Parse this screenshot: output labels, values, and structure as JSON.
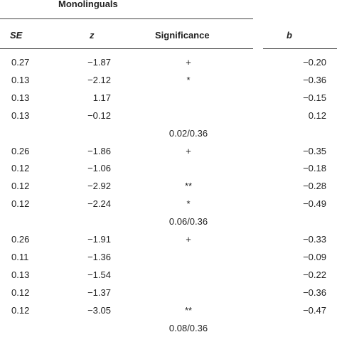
{
  "table": {
    "group_header": "Monolinguals",
    "columns": {
      "se": "SE",
      "z": "z",
      "sig": "Significance",
      "b": "b"
    },
    "rows": [
      {
        "se": "0.27",
        "z": "−1.87",
        "sig": "+",
        "b": "−0.20"
      },
      {
        "se": "0.13",
        "z": "−2.12",
        "sig": "*",
        "b": "−0.36"
      },
      {
        "se": "0.13",
        "z": "1.17",
        "b": "−0.15"
      },
      {
        "se": "0.13",
        "z": "−0.12",
        "b": "0.12"
      },
      {
        "fit": "0.02/0.36"
      },
      {
        "se": "0.26",
        "z": "−1.86",
        "sig": "+",
        "b": "−0.35"
      },
      {
        "se": "0.12",
        "z": "−1.06",
        "b": "−0.18"
      },
      {
        "se": "0.12",
        "z": "−2.92",
        "sig": "**",
        "b": "−0.28"
      },
      {
        "se": "0.12",
        "z": "−2.24",
        "sig": "*",
        "b": "−0.49"
      },
      {
        "fit": "0.06/0.36"
      },
      {
        "se": "0.26",
        "z": "−1.91",
        "sig": "+",
        "b": "−0.33"
      },
      {
        "se": "0.11",
        "z": "−1.36",
        "b": "−0.09"
      },
      {
        "se": "0.13",
        "z": "−1.54",
        "b": "−0.22"
      },
      {
        "se": "0.12",
        "z": "−1.37",
        "b": "−0.36"
      },
      {
        "se": "0.12",
        "z": "−3.05",
        "sig": "**",
        "b": "−0.47"
      },
      {
        "fit": "0.08/0.36"
      }
    ]
  }
}
